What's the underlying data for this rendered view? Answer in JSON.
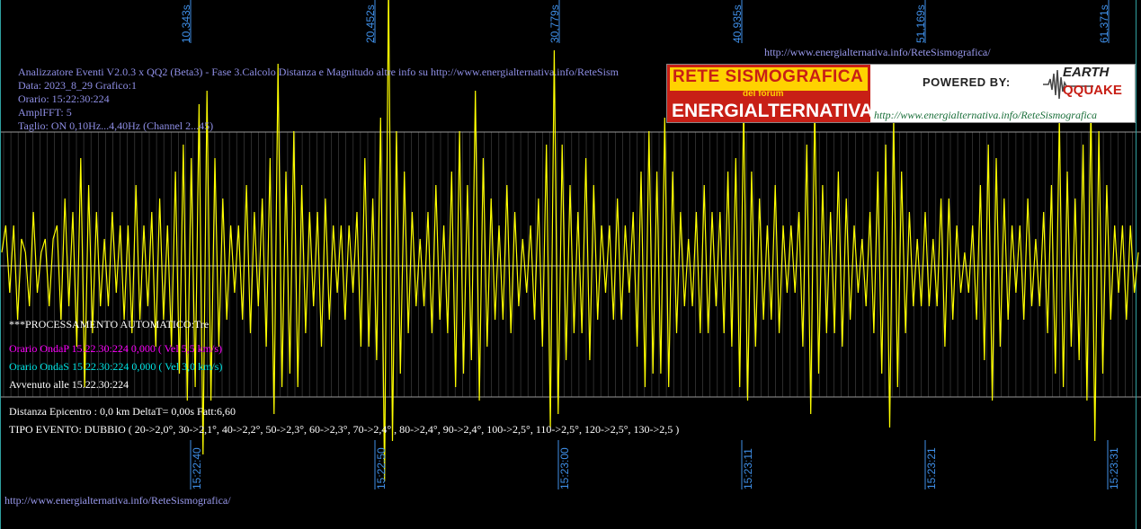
{
  "header": {
    "line1": "Analizzatore Eventi V2.0.3 x QQ2 (Beta3) - Fase 3.Calcolo Distanza e Magnitudo altre info su http://www.energialternativa.info/ReteSism",
    "line2": "Data: 2023_8_29 Grafico:1",
    "line3": "Orario: 15:22:30:224",
    "line4": "AmplFFT: 5",
    "line5": "Taglio: ON 0,10Hz...4,40Hz       (Channel 2...45)"
  },
  "top_url": "http://www.energialternativa.info/ReteSismografica/",
  "bottom_url": "http://www.energialternativa.info/ReteSismografica/",
  "logo": {
    "title": "RETE SISMOGRAFICA",
    "subtitle": "del forum",
    "name": "ENERGIALTERNATIVA",
    "powered": "POWERED BY:",
    "earth": "EARTH",
    "quake": "QQUAKE",
    "url": "http://www.energialternativa.info/ReteSismografica"
  },
  "processing": {
    "auto": "***PROCESSAMENTO AUTOMATICO:Tre",
    "onda_p": "Orario OndaP 15.22.30:224  0,000 ( Vel 5,5 km/s)",
    "onda_s": "Orario OndaS 15.22.30:224  0,000 ( Vel 3,0 km/s)",
    "avvenuto": "Avvenuto alle 15.22.30:224",
    "distanza": "Distanza Epicentro : 0,0 km DeltaT= 0,00s  Fatt:6,60",
    "tipo": "TIPO EVENTO: DUBBIO ( 20->2,0°, 30->2,1°, 40->2,2°, 50->2,3°, 60->2,3°, 70->2,4° , 80->2,4°, 90->2,4°, 100->2,5°, 110->2,5°, 120->2,5°, 130->2,5 )"
  },
  "colors": {
    "signal": "#ffff00",
    "onda_p": "#ff00ff",
    "onda_s": "#00e5e5",
    "axis_labels": "#3f8fe8",
    "grid": "#555555"
  },
  "chart_data": {
    "type": "line",
    "x_axis_seconds": [
      "10,343s",
      "20,452s",
      "30,779s",
      "40,935s",
      "51,169s",
      "61,371s"
    ],
    "x_axis_time": [
      "15:22:40",
      "15:22:50",
      "15:23:00",
      "15:23:11",
      "15:23:21",
      "15:23:31"
    ],
    "x_range_seconds": [
      0,
      62.3
    ],
    "series": [
      {
        "values": [
          0.1,
          0.3,
          -0.2,
          0.3,
          -0.4,
          0.2,
          0.1,
          -0.3,
          0.4,
          -0.2,
          0.1,
          0.2,
          -0.3,
          0.2,
          0.3,
          -0.4,
          0.5,
          -0.3,
          0.4,
          -0.6,
          0.8,
          -0.9,
          0.6,
          -0.5,
          0.4,
          -0.3,
          0.2,
          -0.3,
          0.4,
          -0.2,
          0.3,
          -0.4,
          0.3,
          -0.5,
          0.6,
          -0.4,
          0.3,
          -0.3,
          0.4,
          -0.6,
          0.5,
          -0.4,
          0.3,
          -0.6,
          0.7,
          -0.8,
          0.9,
          -1.0,
          0.8,
          -0.9,
          1.2,
          -1.4,
          1.3,
          -1.0,
          0.8,
          -0.6,
          0.5,
          -0.4,
          0.3,
          -0.2,
          0.3,
          -0.4,
          0.6,
          -0.5,
          0.4,
          -0.3,
          0.5,
          -0.6,
          0.8,
          -1.1,
          1.5,
          -0.9,
          0.7,
          -0.8,
          1.0,
          -0.9,
          0.6,
          -0.5,
          0.4,
          -0.3,
          0.4,
          -0.6,
          0.5,
          -0.4,
          0.3,
          -0.2,
          0.3,
          -0.4,
          0.3,
          -0.2,
          0.4,
          -0.6,
          0.8,
          -0.6,
          0.5,
          -0.7,
          1.1,
          -1.6,
          2.1,
          -1.3,
          1.0,
          -0.8,
          0.7,
          -0.5,
          0.4,
          -0.3,
          0.2,
          -0.3,
          0.4,
          -0.5,
          0.6,
          -0.4,
          0.3,
          -0.5,
          0.7,
          -0.9,
          1.0,
          -0.8,
          0.6,
          -0.7,
          1.3,
          -1.0,
          0.8,
          -0.6,
          0.5,
          -0.4,
          0.3,
          -0.4,
          0.6,
          -0.5,
          0.4,
          -0.3,
          0.2,
          -0.2,
          0.3,
          -0.4,
          0.5,
          -0.6,
          0.9,
          -1.2,
          1.6,
          -1.1,
          0.9,
          -0.7,
          0.6,
          -0.5,
          0.4,
          -0.5,
          0.8,
          -0.7,
          0.6,
          -0.4,
          0.3,
          -0.2,
          0.3,
          -0.4,
          0.5,
          -0.4,
          0.3,
          -0.2,
          0.4,
          -0.6,
          0.7,
          -0.9,
          1.0,
          -0.8,
          0.7,
          -0.8,
          1.1,
          -0.9,
          0.7,
          -0.5,
          0.4,
          -0.3,
          0.2,
          -0.3,
          0.4,
          -0.5,
          0.6,
          -0.5,
          0.4,
          -0.3,
          0.4,
          -0.5,
          0.7,
          -0.6,
          0.8,
          -0.9,
          1.2,
          -1.0,
          0.7,
          -0.6,
          0.5,
          -0.4,
          0.3,
          -0.4,
          0.6,
          -0.5,
          0.3,
          -0.2,
          0.3,
          -0.2,
          0.4,
          -0.6,
          0.9,
          -1.1,
          1.2,
          -0.8,
          0.6,
          -0.5,
          0.4,
          -0.5,
          0.7,
          -0.6,
          0.5,
          -0.4,
          0.3,
          -0.2,
          0.2,
          -0.3,
          0.4,
          -0.5,
          0.7,
          -0.8,
          0.9,
          -1.2,
          1.1,
          -0.9,
          0.7,
          -0.5,
          0.4,
          -0.3,
          0.2,
          -0.3,
          0.4,
          -0.3,
          0.2,
          -0.3,
          0.5,
          -0.6,
          0.5,
          -0.4,
          0.3,
          -0.2,
          0.1,
          -0.2,
          0.3,
          -0.4,
          0.6,
          -0.7,
          0.9,
          -1.0,
          0.8,
          -0.6,
          0.5,
          -0.4,
          0.3,
          -0.2,
          0.3,
          -0.4,
          0.5,
          -0.3,
          0.2,
          -0.3,
          0.4,
          -0.5,
          0.6,
          -0.8,
          1.1,
          -0.9,
          0.7,
          -0.6,
          0.5,
          -0.7,
          0.9,
          -1.0,
          1.2,
          -1.3,
          1.0,
          -0.8,
          0.6,
          -0.4,
          0.3,
          -0.2,
          0.3,
          -0.4,
          0.3,
          -0.2,
          0.1
        ]
      }
    ]
  }
}
